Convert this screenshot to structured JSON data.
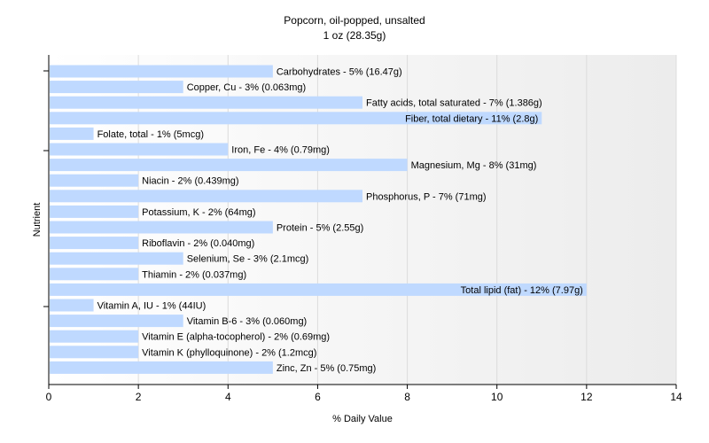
{
  "chart_data": {
    "type": "bar",
    "orientation": "horizontal",
    "title": "Popcorn, oil-popped, unsalted",
    "subtitle": "1 oz (28.35g)",
    "xlabel": "% Daily Value",
    "ylabel": "Nutrient",
    "xlim": [
      0,
      14
    ],
    "xticks": [
      0,
      2,
      4,
      6,
      8,
      10,
      12,
      14
    ],
    "bar_color": "#bfd9ff",
    "label_inside_color": "#000000",
    "categories": [
      "Carbohydrates",
      "Copper, Cu",
      "Fatty acids, total saturated",
      "Fiber, total dietary",
      "Folate, total",
      "Iron, Fe",
      "Magnesium, Mg",
      "Niacin",
      "Phosphorus, P",
      "Potassium, K",
      "Protein",
      "Riboflavin",
      "Selenium, Se",
      "Thiamin",
      "Total lipid (fat)",
      "Vitamin A, IU",
      "Vitamin B-6",
      "Vitamin E (alpha-tocopherol)",
      "Vitamin K (phylloquinone)",
      "Zinc, Zn"
    ],
    "values": [
      5,
      3,
      7,
      11,
      1,
      4,
      8,
      2,
      7,
      2,
      5,
      2,
      3,
      2,
      12,
      1,
      3,
      2,
      2,
      5
    ],
    "labels": [
      "Carbohydrates - 5% (16.47g)",
      "Copper, Cu - 3% (0.063mg)",
      "Fatty acids, total saturated - 7% (1.386g)",
      "Fiber, total dietary - 11% (2.8g)",
      "Folate, total - 1% (5mcg)",
      "Iron, Fe - 4% (0.79mg)",
      "Magnesium, Mg - 8% (31mg)",
      "Niacin - 2% (0.439mg)",
      "Phosphorus, P - 7% (71mg)",
      "Potassium, K - 2% (64mg)",
      "Protein - 5% (2.55g)",
      "Riboflavin - 2% (0.040mg)",
      "Selenium, Se - 3% (2.1mcg)",
      "Thiamin - 2% (0.037mg)",
      "Total lipid (fat) - 12% (7.97g)",
      "Vitamin A, IU - 1% (44IU)",
      "Vitamin B-6 - 3% (0.060mg)",
      "Vitamin E (alpha-tocopherol) - 2% (0.69mg)",
      "Vitamin K (phylloquinone) - 2% (1.2mcg)",
      "Zinc, Zn - 5% (0.75mg)"
    ]
  }
}
